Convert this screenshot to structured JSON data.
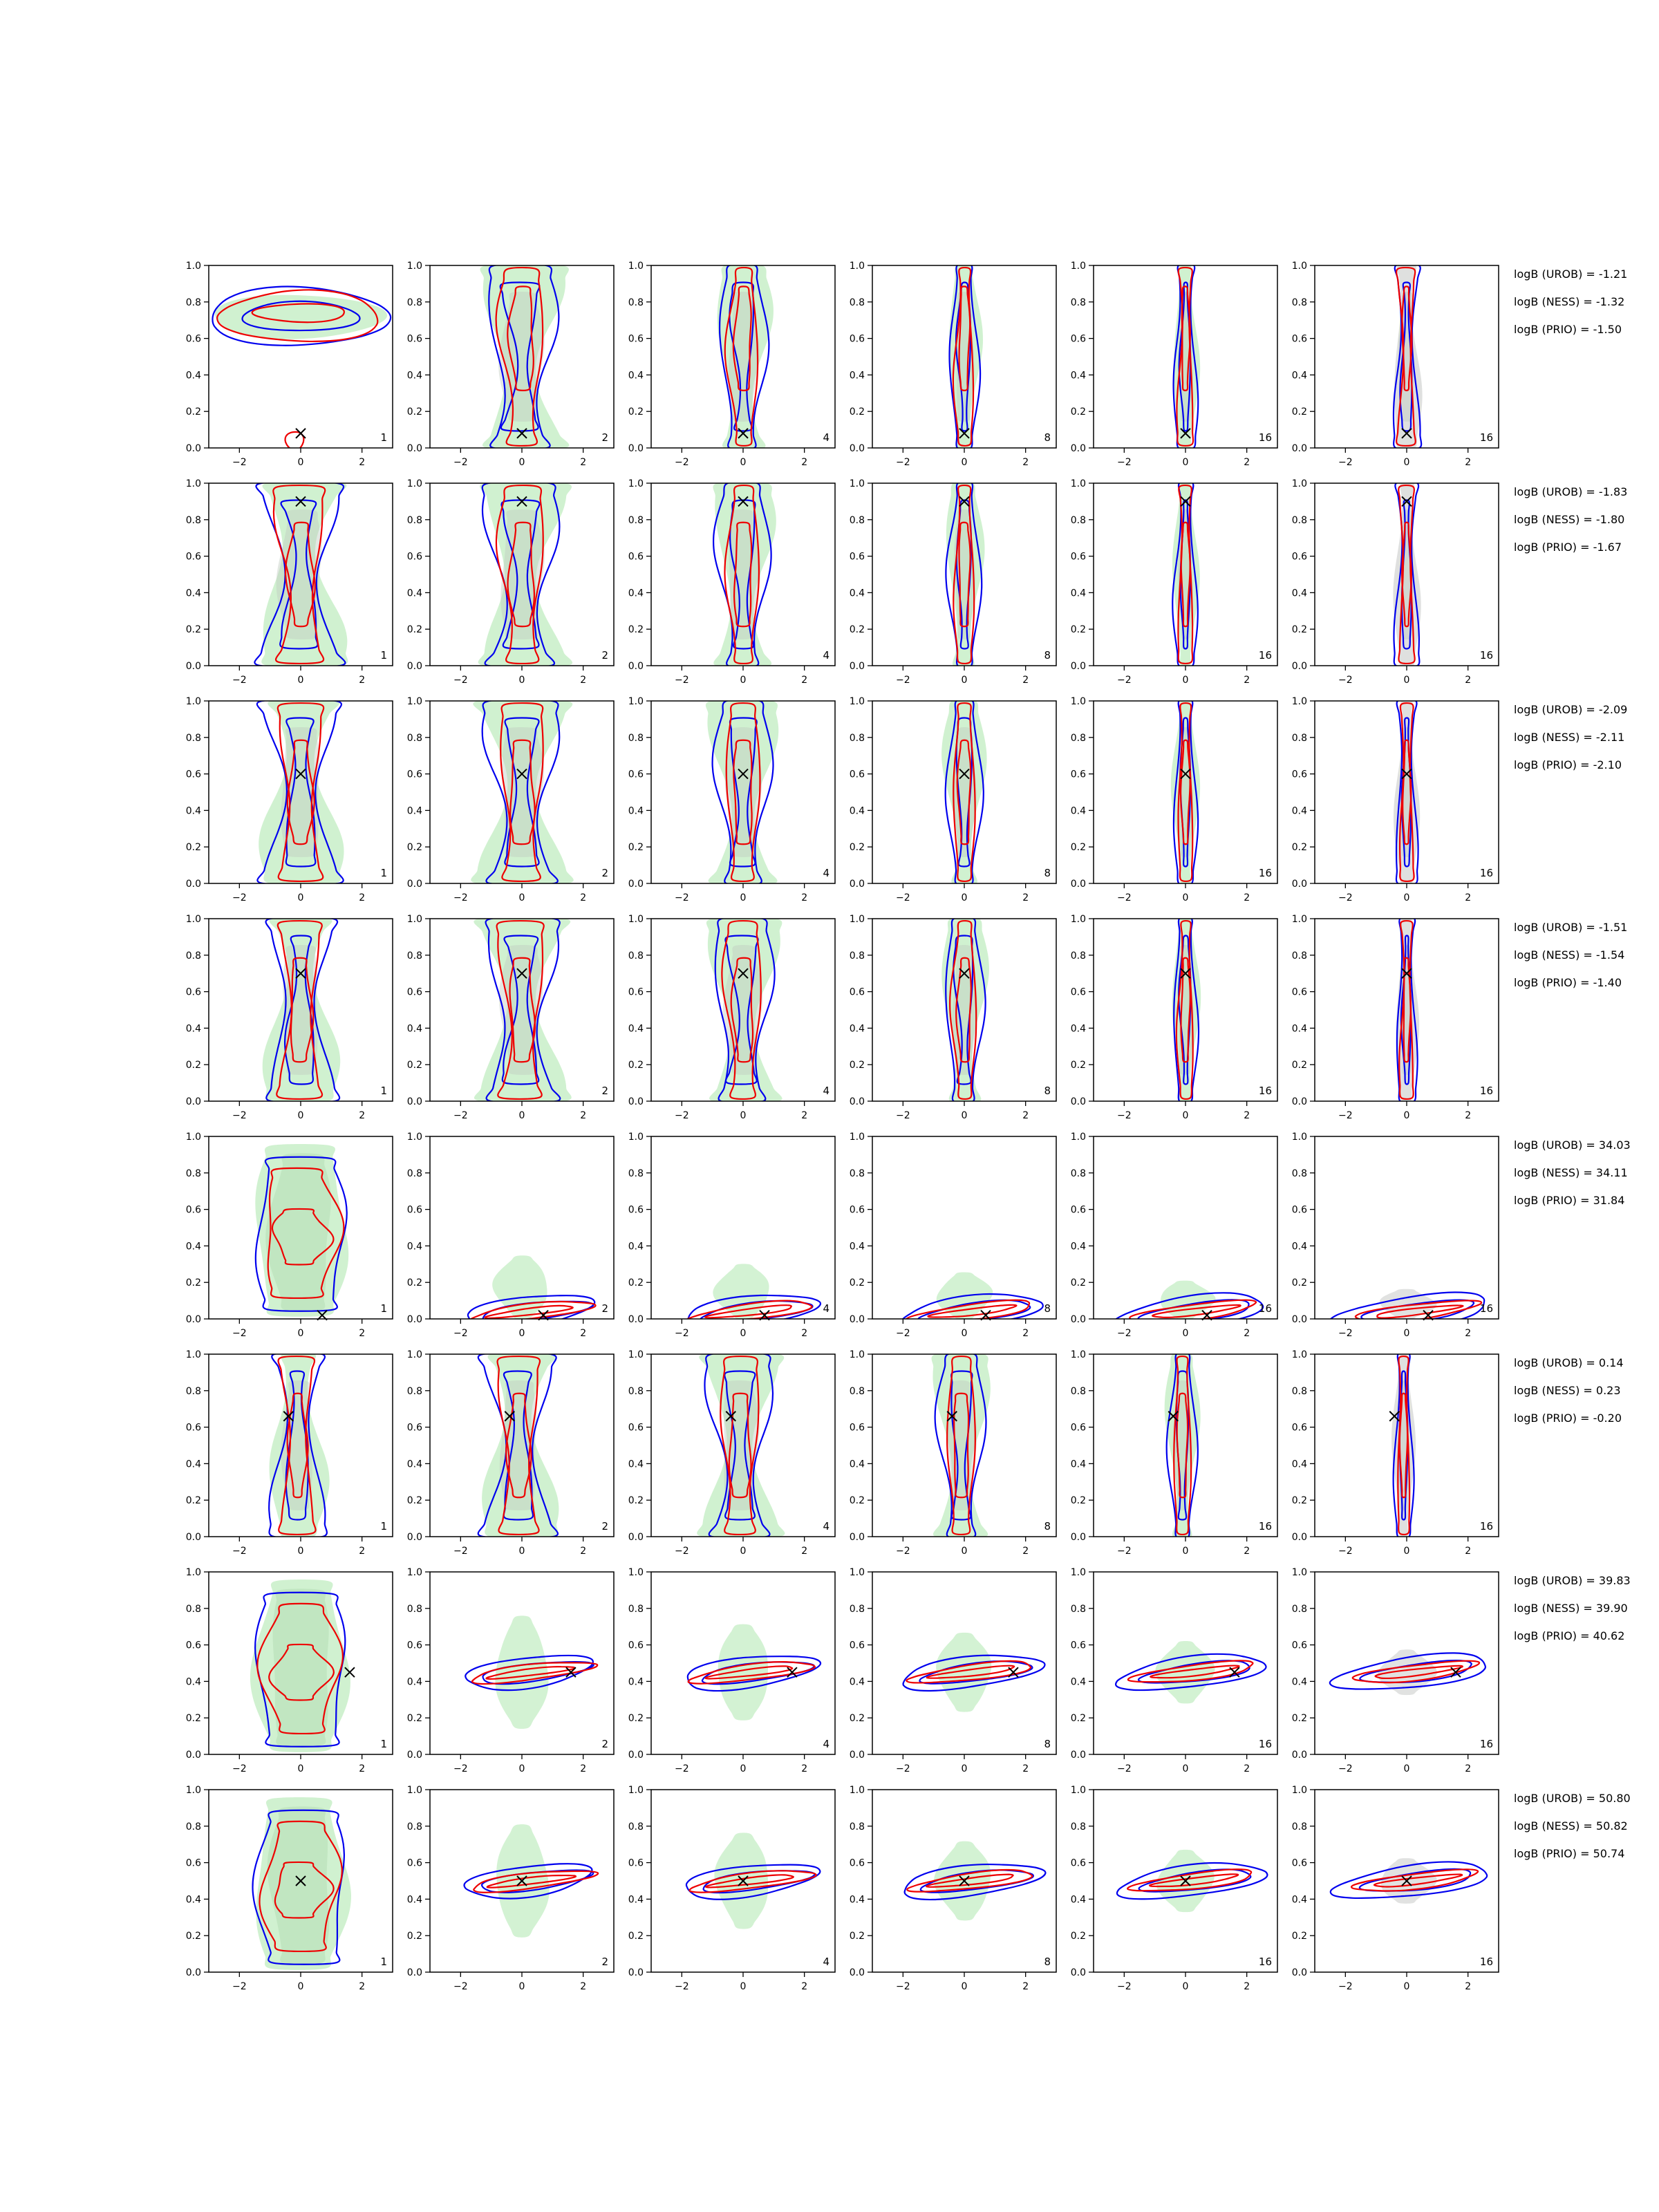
{
  "colors": {
    "fill_green": "#c8efc8",
    "fill_grey": "#d9dbd9",
    "contour_blue": "#0000ee",
    "contour_red": "#ee0000",
    "true_marker": "#000000"
  },
  "chart_data": {
    "type": "contour-grid",
    "rows": 8,
    "cols": 6,
    "xlim": [
      -3,
      3
    ],
    "ylim": [
      0,
      1
    ],
    "x_ticks": [
      -2,
      0,
      2
    ],
    "y_ticks": [
      0.0,
      0.2,
      0.4,
      0.6,
      0.8,
      1.0
    ],
    "x_tick_labels": [
      "−2",
      "0",
      "2"
    ],
    "y_tick_labels": [
      "0.0",
      "0.2",
      "0.4",
      "0.6",
      "0.8",
      "1.0"
    ],
    "column_labels": [
      "1",
      "2",
      "4",
      "8",
      "16",
      "16"
    ],
    "grid": false,
    "row_data": [
      {
        "truth": [
          0.0,
          0.08
        ],
        "shape": "mixed-top",
        "logB": [
          "logB (UROB) = -1.21",
          "logB (NESS) = -1.32",
          "logB (PRIO) = -1.50"
        ]
      },
      {
        "truth": [
          0.0,
          0.9
        ],
        "shape": "vertical-center",
        "logB": [
          "logB (UROB) = -1.83",
          "logB (NESS) = -1.80",
          "logB (PRIO) = -1.67"
        ]
      },
      {
        "truth": [
          0.0,
          0.6
        ],
        "shape": "vertical-center",
        "logB": [
          "logB (UROB) = -2.09",
          "logB (NESS) = -2.11",
          "logB (PRIO) = -2.10"
        ]
      },
      {
        "truth": [
          0.0,
          0.7
        ],
        "shape": "vertical-center",
        "logB": [
          "logB (UROB) = -1.51",
          "logB (NESS) = -1.54",
          "logB (PRIO) = -1.40"
        ]
      },
      {
        "truth": [
          0.7,
          0.02
        ],
        "shape": "bottom-flat",
        "logB": [
          "logB (UROB) = 34.03",
          "logB (NESS) = 34.11",
          "logB (PRIO) = 31.84"
        ]
      },
      {
        "truth": [
          -0.4,
          0.66
        ],
        "shape": "vertical-offset",
        "logB": [
          "logB (UROB) = 0.14",
          "logB (NESS) = 0.23",
          "logB (PRIO) = -0.20"
        ]
      },
      {
        "truth": [
          1.6,
          0.45
        ],
        "shape": "horizontal-mid",
        "logB": [
          "logB (UROB) = 39.83",
          "logB (NESS) = 39.90",
          "logB (PRIO) = 40.62"
        ]
      },
      {
        "truth": [
          0.0,
          0.5
        ],
        "shape": "horizontal-center",
        "logB": [
          "logB (UROB) = 50.80",
          "logB (NESS) = 50.82",
          "logB (PRIO) = 50.74"
        ]
      }
    ]
  }
}
